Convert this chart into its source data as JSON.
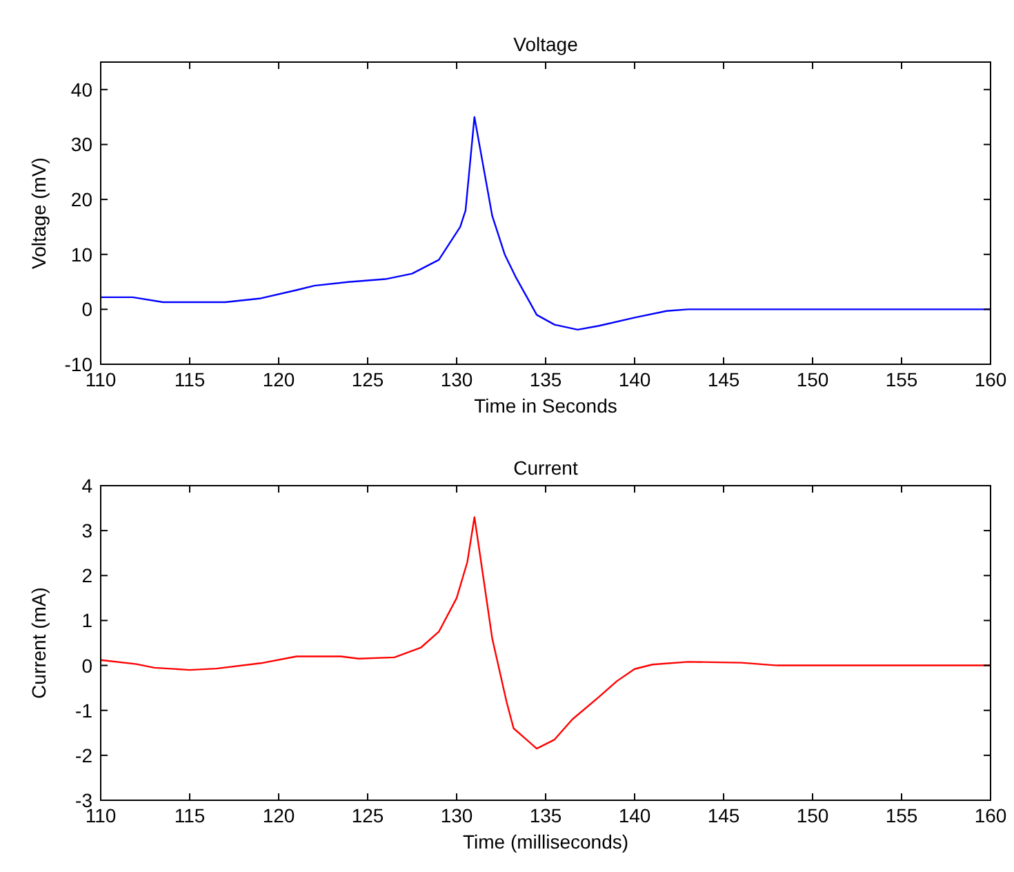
{
  "chart_data": [
    {
      "type": "line",
      "title": "Voltage",
      "xlabel": "Time in Seconds",
      "ylabel": "Voltage (mV)",
      "xlim": [
        110,
        160
      ],
      "xticks": [
        110,
        115,
        120,
        125,
        130,
        135,
        140,
        145,
        150,
        155,
        160
      ],
      "ylim": [
        -10,
        45
      ],
      "yticks": [
        -10,
        0,
        10,
        20,
        30,
        40
      ],
      "grid": false,
      "marker": "none",
      "series": [
        {
          "color": "#0000ff",
          "x": [
            110,
            111.8,
            113.5,
            117,
            119,
            121,
            122,
            124,
            126,
            127.5,
            129,
            130.2,
            130.5,
            131,
            132,
            132.7,
            133.3,
            134.5,
            135.5,
            136.8,
            138,
            140,
            141.8,
            143,
            160
          ],
          "values": [
            2.2,
            2.2,
            1.3,
            1.3,
            2,
            3.5,
            4.3,
            5,
            5.5,
            6.5,
            9,
            15,
            18,
            35,
            17,
            10,
            6,
            -1,
            -2.8,
            -3.7,
            -3,
            -1.5,
            -0.3,
            0,
            0
          ]
        }
      ]
    },
    {
      "type": "line",
      "title": "Current",
      "xlabel": "Time (milliseconds)",
      "ylabel": "Current (mA)",
      "xlim": [
        110,
        160
      ],
      "xticks": [
        110,
        115,
        120,
        125,
        130,
        135,
        140,
        145,
        150,
        155,
        160
      ],
      "ylim": [
        -3,
        4
      ],
      "yticks": [
        -3,
        -2,
        -1,
        0,
        1,
        2,
        3,
        4
      ],
      "grid": false,
      "marker": "none",
      "series": [
        {
          "color": "#ff0000",
          "x": [
            110,
            112,
            113,
            115,
            116.5,
            119,
            121,
            123.5,
            124.5,
            126.5,
            128,
            129,
            130,
            130.6,
            131,
            131.3,
            132,
            132.8,
            133.2,
            134.5,
            135.5,
            136.5,
            138,
            139,
            140,
            141,
            143,
            146,
            148,
            160
          ],
          "values": [
            0.12,
            0.03,
            -0.05,
            -0.1,
            -0.07,
            0.05,
            0.2,
            0.2,
            0.15,
            0.18,
            0.4,
            0.75,
            1.5,
            2.3,
            3.3,
            2.5,
            0.6,
            -0.8,
            -1.4,
            -1.85,
            -1.65,
            -1.2,
            -0.7,
            -0.35,
            -0.08,
            0.02,
            0.08,
            0.06,
            0,
            0
          ]
        }
      ]
    }
  ]
}
